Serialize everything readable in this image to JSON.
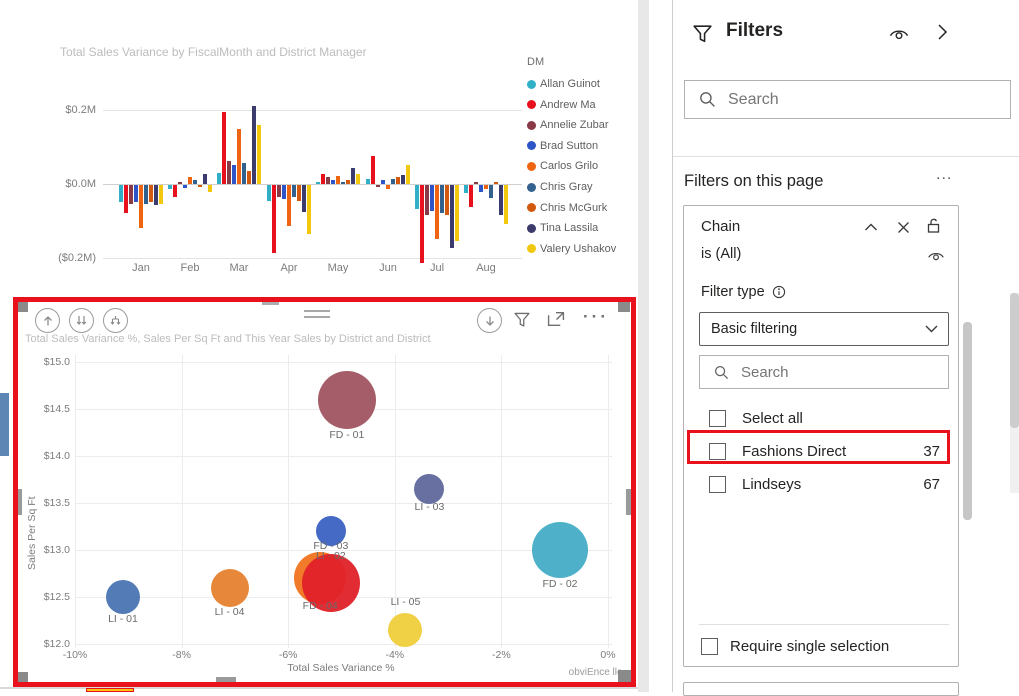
{
  "chart_data": [
    {
      "type": "bar",
      "title": "Total Sales Variance by FiscalMonth and District Manager",
      "categories": [
        "Jan",
        "Feb",
        "Mar",
        "Apr",
        "May",
        "Jun",
        "Jul",
        "Aug"
      ],
      "y_ticks": [
        "$0.2M",
        "$0.0M",
        "($0.2M)"
      ],
      "ylim": [
        -0.25,
        0.25
      ],
      "unit": "$M",
      "legend_title": "DM",
      "legend_position": "right",
      "grid": true,
      "series": [
        {
          "name": "Allan Guinot",
          "color": "#31AFC7",
          "values": [
            -0.045,
            -0.012,
            0.03,
            -0.042,
            0.005,
            0.014,
            -0.065,
            -0.022
          ]
        },
        {
          "name": "Andrew Ma",
          "color": "#E8101C",
          "values": [
            -0.075,
            -0.032,
            0.195,
            -0.185,
            0.028,
            0.075,
            -0.21,
            -0.06
          ]
        },
        {
          "name": "Annelie Zubar",
          "color": "#8A3A46",
          "values": [
            -0.05,
            0.006,
            0.062,
            -0.032,
            0.018,
            -0.006,
            -0.08,
            0.006
          ]
        },
        {
          "name": "Brad Sutton",
          "color": "#2E55C8",
          "values": [
            -0.045,
            -0.008,
            0.052,
            -0.038,
            0.01,
            0.01,
            -0.07,
            -0.02
          ]
        },
        {
          "name": "Carlos Grilo",
          "color": "#EE6411",
          "values": [
            -0.115,
            0.02,
            0.148,
            -0.11,
            0.022,
            -0.012,
            -0.145,
            -0.012
          ]
        },
        {
          "name": "Chris Gray",
          "color": "#32618D",
          "values": [
            -0.05,
            0.012,
            0.058,
            -0.032,
            0.006,
            0.014,
            -0.075,
            -0.035
          ]
        },
        {
          "name": "Chris McGurk",
          "color": "#D2590D",
          "values": [
            -0.045,
            -0.004,
            0.035,
            -0.042,
            0.012,
            0.02,
            -0.08,
            0.006
          ]
        },
        {
          "name": "Tina Lassila",
          "color": "#3B3B6D",
          "values": [
            -0.055,
            0.028,
            0.212,
            -0.072,
            0.042,
            0.024,
            -0.17,
            -0.08
          ]
        },
        {
          "name": "Valery Ushakov",
          "color": "#F2C80F",
          "values": [
            -0.05,
            -0.018,
            0.16,
            -0.132,
            0.028,
            0.052,
            -0.15,
            -0.105
          ]
        }
      ]
    },
    {
      "type": "scatter",
      "title": "Total Sales Variance %, Sales Per Sq Ft and This Year Sales by District and District",
      "xlabel": "Total Sales Variance %",
      "ylabel": "Sales Per Sq Ft",
      "x_ticks": [
        "-10%",
        "-8%",
        "-6%",
        "-4%",
        "-2%",
        "0%"
      ],
      "y_ticks": [
        "$15.0",
        "$14.5",
        "$14.0",
        "$13.5",
        "$13.0",
        "$12.5",
        "$12.0"
      ],
      "xlim": [
        -10,
        0
      ],
      "ylim": [
        12,
        15
      ],
      "grid": true,
      "watermark": "obviEnce llc",
      "points": [
        {
          "label": "LI - 01",
          "x": -9.1,
          "y": 12.5,
          "r": 17,
          "color": "#4A74B2",
          "label_dy": 22
        },
        {
          "label": "LI - 04",
          "x": -7.1,
          "y": 12.6,
          "r": 19,
          "color": "#E5812F",
          "label_dy": 24
        },
        {
          "label": "FD - 01",
          "x": -4.9,
          "y": 14.6,
          "r": 29,
          "color": "#A15462",
          "label_dy": 35
        },
        {
          "label": "FD - 03",
          "x": -5.2,
          "y": 13.2,
          "r": 15,
          "color": "#3B62C3",
          "label_dy": 15
        },
        {
          "label": "FD - 04",
          "x": -5.4,
          "y": 12.7,
          "r": 26,
          "color": "#F0741F",
          "label_dy": 28
        },
        {
          "label": "LI - 02",
          "x": -5.2,
          "y": 12.65,
          "r": 29,
          "color": "#E02128",
          "label_dy": -27
        },
        {
          "label": "LI - 05",
          "x": -3.8,
          "y": 12.15,
          "r": 17,
          "color": "#EFCE3B",
          "label_dy": -28
        },
        {
          "label": "LI - 03",
          "x": -3.35,
          "y": 13.65,
          "r": 15,
          "color": "#5F689B",
          "label_dy": 18
        },
        {
          "label": "FD - 02",
          "x": -0.9,
          "y": 13.0,
          "r": 28,
          "color": "#45ACC6",
          "label_dy": 34
        }
      ]
    }
  ],
  "visual_toolbar": {
    "ellipsis": "···",
    "icons_left": [
      "drill-up-icon",
      "drill-down-double-icon",
      "expand-all-down-icon"
    ],
    "icons_right": [
      "drill-down-icon",
      "filter-icon",
      "focus-mode-icon",
      "more-options-icon"
    ]
  },
  "filters_pane": {
    "title": "Filters",
    "header_icons": [
      "eye-icon",
      "collapse-pane-icon"
    ],
    "search_placeholder": "Search",
    "section": {
      "title": "Filters on this page",
      "more": "..."
    },
    "chain_card": {
      "field": "Chain",
      "condition": "is (All)",
      "card_icons": [
        "chevron-up-icon",
        "remove-filter-icon",
        "unlock-icon",
        "eye-icon"
      ],
      "filter_type_label": "Filter type",
      "filter_type_value": "Basic filtering",
      "search_placeholder": "Search",
      "options": [
        {
          "label": "Select all",
          "count": "",
          "checked": false,
          "highlighted": false
        },
        {
          "label": "Fashions Direct",
          "count": "37",
          "checked": false,
          "highlighted": true
        },
        {
          "label": "Lindseys",
          "count": "67",
          "checked": false,
          "highlighted": false
        }
      ],
      "require_single": "Require single selection"
    }
  },
  "colors": {
    "annotation_red": "#E8111C",
    "edge_strip_blue": "#5E86B5",
    "partial_visual_yellow": "#FFC20E"
  }
}
